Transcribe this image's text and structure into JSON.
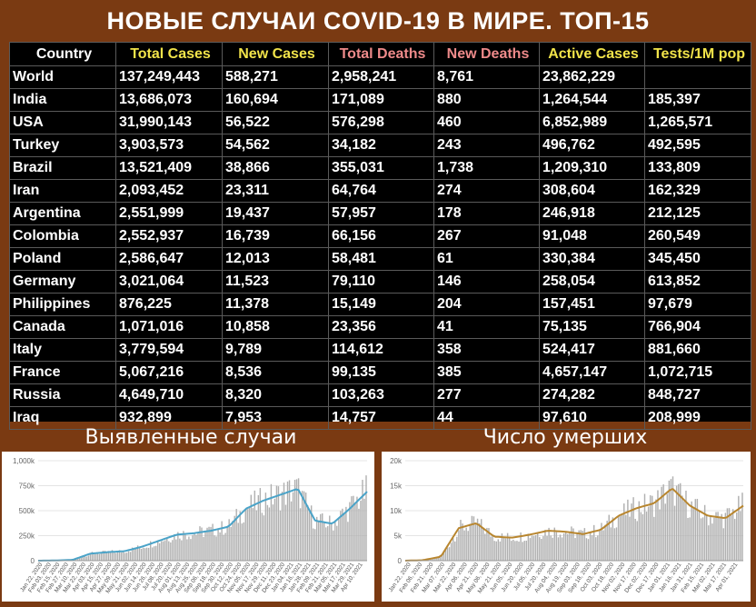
{
  "title": "НОВЫЕ СЛУЧАИ COVID-19 В МИРЕ. ТОП-15",
  "table": {
    "headers": [
      "Country",
      "Total Cases",
      "New Cases",
      "Total Deaths",
      "New Deaths",
      "Active Cases",
      "Tests/1M pop"
    ],
    "header_colors": [
      "#ffffff",
      "#f2e44a",
      "#f2e44a",
      "#ee8a8a",
      "#ee8a8a",
      "#f2e44a",
      "#f2e44a"
    ],
    "rows": [
      [
        "World",
        "137,249,443",
        "588,271",
        "2,958,241",
        "8,761",
        "23,862,229",
        ""
      ],
      [
        "India",
        "13,686,073",
        "160,694",
        "171,089",
        "880",
        "1,264,544",
        "185,397"
      ],
      [
        "USA",
        "31,990,143",
        "56,522",
        "576,298",
        "460",
        "6,852,989",
        "1,265,571"
      ],
      [
        "Turkey",
        "3,903,573",
        "54,562",
        "34,182",
        "243",
        "496,762",
        "492,595"
      ],
      [
        "Brazil",
        "13,521,409",
        "38,866",
        "355,031",
        "1,738",
        "1,209,310",
        "133,809"
      ],
      [
        "Iran",
        "2,093,452",
        "23,311",
        "64,764",
        "274",
        "308,604",
        "162,329"
      ],
      [
        "Argentina",
        "2,551,999",
        "19,437",
        "57,957",
        "178",
        "246,918",
        "212,125"
      ],
      [
        "Colombia",
        "2,552,937",
        "16,739",
        "66,156",
        "267",
        "91,048",
        "260,549"
      ],
      [
        "Poland",
        "2,586,647",
        "12,013",
        "58,481",
        "61",
        "330,384",
        "345,450"
      ],
      [
        "Germany",
        "3,021,064",
        "11,523",
        "79,110",
        "146",
        "258,054",
        "613,852"
      ],
      [
        "Philippines",
        "876,225",
        "11,378",
        "15,149",
        "204",
        "157,451",
        "97,679"
      ],
      [
        "Canada",
        "1,071,016",
        "10,858",
        "23,356",
        "41",
        "75,135",
        "766,904"
      ],
      [
        "Italy",
        "3,779,594",
        "9,789",
        "114,612",
        "358",
        "524,417",
        "881,660"
      ],
      [
        "France",
        "5,067,216",
        "8,536",
        "99,135",
        "385",
        "4,657,147",
        "1,072,715"
      ],
      [
        "Russia",
        "4,649,710",
        "8,320",
        "103,263",
        "277",
        "274,282",
        "848,727"
      ],
      [
        "Iraq",
        "932,899",
        "7,953",
        "14,757",
        "44",
        "97,610",
        "208,999"
      ]
    ]
  },
  "charts": [
    {
      "heading": "Выявленные случаи"
    },
    {
      "heading": "Число умерших"
    }
  ],
  "chart_data": [
    {
      "type": "bar",
      "title": "Выявленные случаи",
      "ylim": [
        0,
        1000000
      ],
      "yticks": [
        0,
        250000,
        500000,
        750000,
        1000000
      ],
      "ytick_labels": [
        "0",
        "250k",
        "500k",
        "750k",
        "1,000k"
      ],
      "bar_color": "#b0b0b0",
      "line_color": "#4aa3c8",
      "x": [
        "Jan 22, 2020",
        "Feb 15, 2020",
        "Mar 10, 2020",
        "Apr 03, 2020",
        "Apr 27, 2020",
        "May 21, 2020",
        "Jun 14, 2020",
        "Jul 08, 2020",
        "Aug 01, 2020",
        "Aug 25, 2020",
        "Sep 18, 2020",
        "Oct 12, 2020",
        "Nov 05, 2020",
        "Nov 29, 2020",
        "Dec 23, 2020",
        "Jan 16, 2021",
        "Feb 09, 2021",
        "Mar 05, 2021",
        "Mar 29, 2021",
        "Apr 13, 2021"
      ],
      "xtick_labels": [
        "Jan 22, 2020",
        "Feb 03, 2020",
        "Feb 15, 2020",
        "Feb 27, 2020",
        "Mar 10, 2020",
        "Mar 22, 2020",
        "Apr 03, 2020",
        "Apr 15, 2020",
        "Apr 27, 2020",
        "May 09, 2020",
        "May 21, 2020",
        "Jun 02, 2020",
        "Jun 14, 2020",
        "Jun 26, 2020",
        "Jul 08, 2020",
        "Jul 20, 2020",
        "Aug 01, 2020",
        "Aug 13, 2020",
        "Aug 25, 2020",
        "Sep 06, 2020",
        "Sep 18, 2020",
        "Sep 30, 2020",
        "Oct 12, 2020",
        "Oct 24, 2020",
        "Nov 05, 2020",
        "Nov 17, 2020",
        "Nov 29, 2020",
        "Dec 11, 2020",
        "Dec 23, 2020",
        "Jan 04, 2021",
        "Jan 16, 2021",
        "Jan 28, 2021",
        "Feb 09, 2021",
        "Feb 21, 2021",
        "Mar 05, 2021",
        "Mar 17, 2021",
        "Mar 29, 2021",
        "Apr 10, 2021"
      ],
      "values": [
        0,
        2000,
        8000,
        70000,
        85000,
        95000,
        140000,
        200000,
        260000,
        275000,
        300000,
        340000,
        520000,
        600000,
        660000,
        720000,
        400000,
        370000,
        520000,
        690000
      ]
    },
    {
      "type": "bar",
      "title": "Число умерших",
      "ylim": [
        0,
        20000
      ],
      "yticks": [
        0,
        5000,
        10000,
        15000,
        20000
      ],
      "ytick_labels": [
        "0",
        "5k",
        "10k",
        "15k",
        "20k"
      ],
      "bar_color": "#b0b0b0",
      "line_color": "#b8862f",
      "x": [
        "Jan 22, 2020",
        "Feb 15, 2020",
        "Mar 10, 2020",
        "Apr 03, 2020",
        "Apr 17, 2020",
        "May 21, 2020",
        "Jun 14, 2020",
        "Jul 08, 2020",
        "Aug 01, 2020",
        "Aug 25, 2020",
        "Sep 18, 2020",
        "Oct 12, 2020",
        "Nov 05, 2020",
        "Nov 29, 2020",
        "Dec 23, 2020",
        "Jan 16, 2021",
        "Feb 09, 2021",
        "Mar 05, 2021",
        "Mar 29, 2021",
        "Apr 13, 2021"
      ],
      "xtick_labels": [
        "Jan 22, 2020",
        "Feb 06, 2020",
        "Feb 21, 2020",
        "Mar 07, 2020",
        "Mar 22, 2020",
        "Apr 06, 2020",
        "Apr 21, 2020",
        "May 06, 2020",
        "May 21, 2020",
        "Jun 05, 2020",
        "Jun 20, 2020",
        "Jul 05, 2020",
        "Jul 20, 2020",
        "Aug 04, 2020",
        "Aug 19, 2020",
        "Sep 03, 2020",
        "Sep 18, 2020",
        "Oct 03, 2020",
        "Oct 18, 2020",
        "Nov 02, 2020",
        "Nov 17, 2020",
        "Dec 02, 2020",
        "Dec 17, 2020",
        "Jan 01, 2021",
        "Jan 16, 2021",
        "Jan 31, 2021",
        "Feb 15, 2021",
        "Mar 02, 2021",
        "Mar 17, 2021",
        "Apr 01, 2021"
      ],
      "values": [
        0,
        100,
        800,
        6500,
        7500,
        4800,
        4600,
        5200,
        6000,
        5800,
        5300,
        6200,
        9000,
        10500,
        11500,
        14500,
        11000,
        9000,
        8500,
        11000
      ]
    }
  ]
}
